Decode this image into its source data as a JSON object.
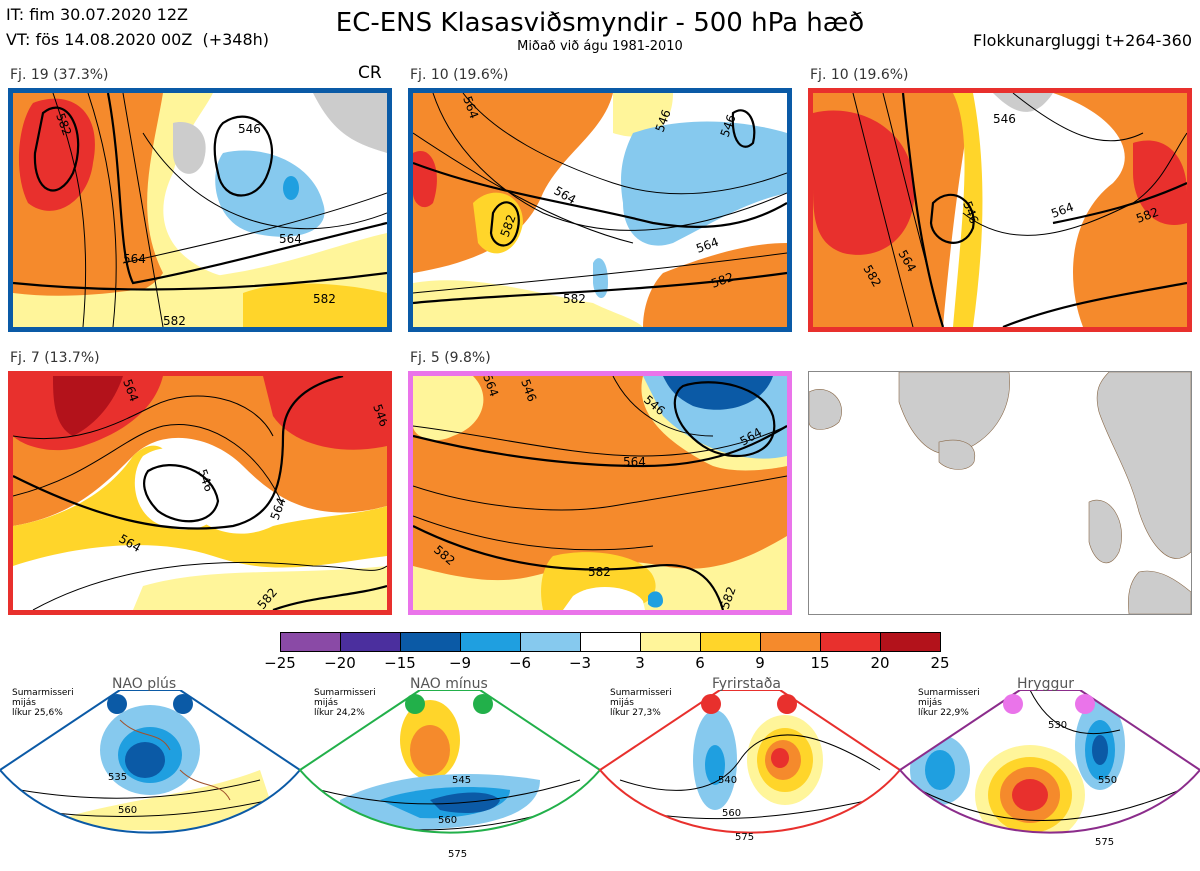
{
  "header": {
    "it_line": "IT: fim 30.07.2020 12Z",
    "vt_line": "VT: fös 14.08.2020 00Z  (+348h)",
    "title": "EC-ENS Klasasviðsmyndir - 500 hPa hæð",
    "subtitle": "Miðað við águ 1981-2010",
    "window": "Flokkunargluggi t+264-360"
  },
  "panels": [
    {
      "label": "Fj. 19 (37.3%)",
      "tag": "CR",
      "border": "#0a5aa6",
      "contours": [
        "582",
        "564",
        "546",
        "564",
        "582",
        "582"
      ]
    },
    {
      "label": "Fj. 10 (19.6%)",
      "border": "#0a5aa6",
      "contours": [
        "564",
        "546",
        "546",
        "582",
        "564",
        "582",
        "564",
        "582"
      ]
    },
    {
      "label": "Fj. 10 (19.6%)",
      "border": "#e8302d",
      "contours": [
        "546",
        "546",
        "564",
        "582",
        "564",
        "582"
      ]
    },
    {
      "label": "Fj. 7 (13.7%)",
      "border": "#e8302d",
      "contours": [
        "564",
        "546",
        "564",
        "564",
        "546",
        "582"
      ]
    },
    {
      "label": "Fj. 5 (9.8%)",
      "border": "#ea74ea",
      "contours": [
        "564",
        "546",
        "546",
        "564",
        "564",
        "582",
        "582",
        "582"
      ]
    }
  ],
  "colorbar": {
    "ticks": [
      "−25",
      "−20",
      "−15",
      "−9",
      "−6",
      "−3",
      "3",
      "6",
      "9",
      "15",
      "20",
      "25"
    ],
    "colors": [
      "#8a4aa6",
      "#4b2f9e",
      "#0b5aa6",
      "#1f9fe0",
      "#86c9ee",
      "#ffffff",
      "#fff59a",
      "#ffd52a",
      "#f58a2c",
      "#e8302d",
      "#b3121b"
    ]
  },
  "regimes": [
    {
      "name": "NAO plús",
      "season": "Sumarmisseri",
      "mid": "mijás",
      "prob": "líkur 25,6%",
      "color": "#0b5aa6",
      "contours": [
        "535",
        "560"
      ]
    },
    {
      "name": "NAO mínus",
      "season": "Sumarmisseri",
      "mid": "mijás",
      "prob": "líkur 24,2%",
      "color": "#22b04a",
      "contours": [
        "545",
        "560",
        "575"
      ]
    },
    {
      "name": "Fyrirstaða",
      "season": "Sumarmisseri",
      "mid": "mijás",
      "prob": "líkur 27,3%",
      "color": "#e8302d",
      "contours": [
        "540",
        "560",
        "575"
      ]
    },
    {
      "name": "Hryggur",
      "season": "Sumarmisseri",
      "mid": "mijás",
      "prob": "líkur 22,9%",
      "color": "#ea74ea",
      "contours": [
        "530",
        "550",
        "575"
      ]
    }
  ]
}
